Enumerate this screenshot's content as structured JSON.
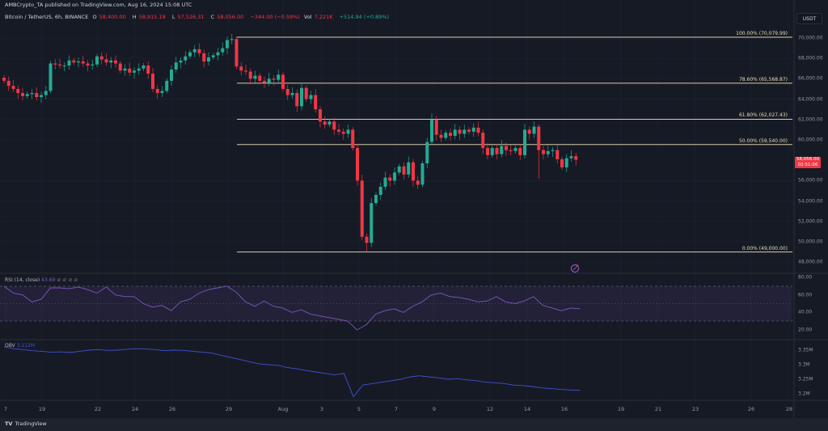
{
  "header": {
    "title": "AMBCrypto_TA published on TradingView.com, Aug 16, 2024 15:08 UTC",
    "symbol": "Bitcoin / TetherUS, 6h, BINANCE",
    "o_label": "O",
    "o": "58,400.00",
    "h_label": "H",
    "h": "58,915.18",
    "l_label": "L",
    "l": "57,526.31",
    "c_label": "C",
    "c": "58,056.00",
    "change": "−344.00 (−0.59%)",
    "vol_label": "Vol",
    "vol": "7.221K",
    "vol_change": "+514.94 (+0.89%)"
  },
  "currency_button": "USDT",
  "price_axis": [
    "70,000.00",
    "68,000.00",
    "66,000.00",
    "64,000.00",
    "62,000.00",
    "60,000.00",
    "56,000.00",
    "54,000.00",
    "52,000.00",
    "50,000.00",
    "48,000.00"
  ],
  "last_price": {
    "price": "58,056.00",
    "countdown": "02:51:06"
  },
  "fib_levels": [
    {
      "label": "100.00% (70,079.99)",
      "price": 70079.99
    },
    {
      "label": "78.60% (65,568.87)",
      "price": 65568.87
    },
    {
      "label": "61.80% (62,027.43)",
      "price": 62027.43
    },
    {
      "label": "50.00% (59,540.00)",
      "price": 59540.0
    },
    {
      "label": "0.00% (49,000.00)",
      "price": 49000.0
    }
  ],
  "rsi": {
    "label": "RSI (14, close)",
    "value": "43.69",
    "axis": [
      "80.00",
      "60.00",
      "40.00",
      "20.00"
    ]
  },
  "obv": {
    "label": "OBV",
    "value": "3.212M",
    "axis": [
      "3.35M",
      "3.3M",
      "3.25M",
      "3.2M"
    ]
  },
  "time_axis": [
    "7",
    "19",
    "22",
    "24",
    "26",
    "29",
    "Aug",
    "3",
    "5",
    "7",
    "9",
    "12",
    "14",
    "16",
    "19",
    "21",
    "23",
    "26",
    "28"
  ],
  "footer": {
    "brand": "TradingView"
  },
  "colors": {
    "up": "#22ab94",
    "down": "#f23645",
    "fib": "#d6ccaa",
    "rsi": "#7e57c2",
    "obv": "#3f51d0",
    "bg": "#161a25"
  },
  "chart_data": {
    "type": "candlestick",
    "timeframe": "6h",
    "closes": [
      65.8,
      65.3,
      65.0,
      64.6,
      64.3,
      64.5,
      64.6,
      64.2,
      64.4,
      64.8,
      67.5,
      67.4,
      67.3,
      67.3,
      67.8,
      67.6,
      67.7,
      67.5,
      67.3,
      67.4,
      68.2,
      67.9,
      67.6,
      67.8,
      67.5,
      66.8,
      67.0,
      66.6,
      66.8,
      67.0,
      67.3,
      66.5,
      65.0,
      64.6,
      64.8,
      65.8,
      66.9,
      67.6,
      67.8,
      68.2,
      68.6,
      68.9,
      68.5,
      67.7,
      68.1,
      68.3,
      68.6,
      69.0,
      69.8,
      69.9,
      67.2,
      66.8,
      66.7,
      66.0,
      66.3,
      65.8,
      65.6,
      66.0,
      65.9,
      66.4,
      65.0,
      64.4,
      64.6,
      63.3,
      65.1,
      64.0,
      64.4,
      63.0,
      61.8,
      61.5,
      61.8,
      61.0,
      60.8,
      60.6,
      61.0,
      59.2,
      56.0,
      50.5,
      49.9,
      53.8,
      54.6,
      55.4,
      56.3,
      56.0,
      56.8,
      57.4,
      56.6,
      57.8,
      56.0,
      55.6,
      57.7,
      59.8,
      62.0,
      60.5,
      60.2,
      60.7,
      60.4,
      61.0,
      60.6,
      61.0,
      60.8,
      61.2,
      60.7,
      59.2,
      58.5,
      59.2,
      58.6,
      59.4,
      59.0,
      58.9,
      59.2,
      58.5,
      61.0,
      60.6,
      61.3,
      59.0,
      58.6,
      58.9,
      59.0,
      58.1,
      57.3,
      58.2,
      58.4,
      58.056
    ],
    "price_unit": "thousand USDT",
    "ylim": [
      47000,
      71000
    ],
    "rsi_values": [
      70,
      62,
      60,
      52,
      55,
      68,
      68,
      67,
      69,
      66,
      62,
      69,
      60,
      58,
      58,
      50,
      46,
      48,
      42,
      52,
      55,
      62,
      66,
      68,
      70,
      63,
      52,
      47,
      53,
      47,
      45,
      40,
      43,
      38,
      36,
      34,
      32,
      30,
      20,
      26,
      38,
      42,
      44,
      40,
      47,
      52,
      60,
      62,
      58,
      57,
      55,
      52,
      53,
      58,
      52,
      50,
      53,
      58,
      48,
      45,
      42,
      45,
      44
    ],
    "obv_values": [
      3.361,
      3.355,
      3.352,
      3.348,
      3.346,
      3.343,
      3.344,
      3.342,
      3.346,
      3.35,
      3.352,
      3.349,
      3.35,
      3.353,
      3.355,
      3.354,
      3.352,
      3.348,
      3.35,
      3.349,
      3.346,
      3.343,
      3.34,
      3.332,
      3.325,
      3.318,
      3.31,
      3.303,
      3.3,
      3.298,
      3.29,
      3.286,
      3.28,
      3.275,
      3.27,
      3.265,
      3.27,
      3.19,
      3.23,
      3.235,
      3.24,
      3.245,
      3.25,
      3.258,
      3.262,
      3.258,
      3.255,
      3.25,
      3.252,
      3.248,
      3.245,
      3.24,
      3.238,
      3.235,
      3.23,
      3.228,
      3.225,
      3.22,
      3.218,
      3.215,
      3.213,
      3.212
    ]
  }
}
